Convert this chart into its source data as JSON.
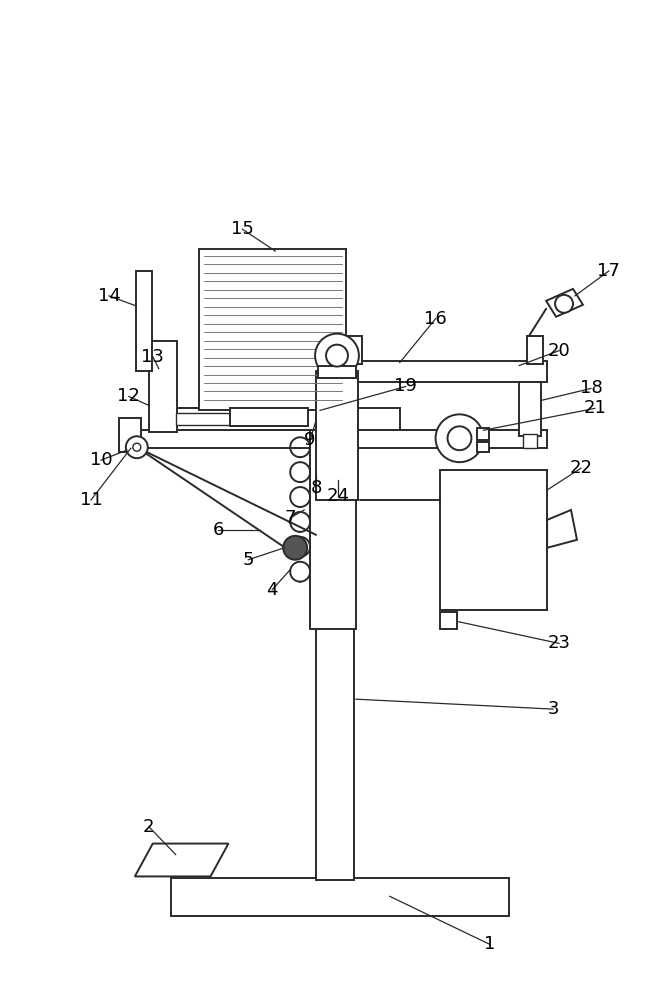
{
  "bg_color": "#ffffff",
  "line_color": "#2a2a2a",
  "lw": 1.4,
  "fig_w": 6.67,
  "fig_h": 10.0,
  "dpi": 100
}
